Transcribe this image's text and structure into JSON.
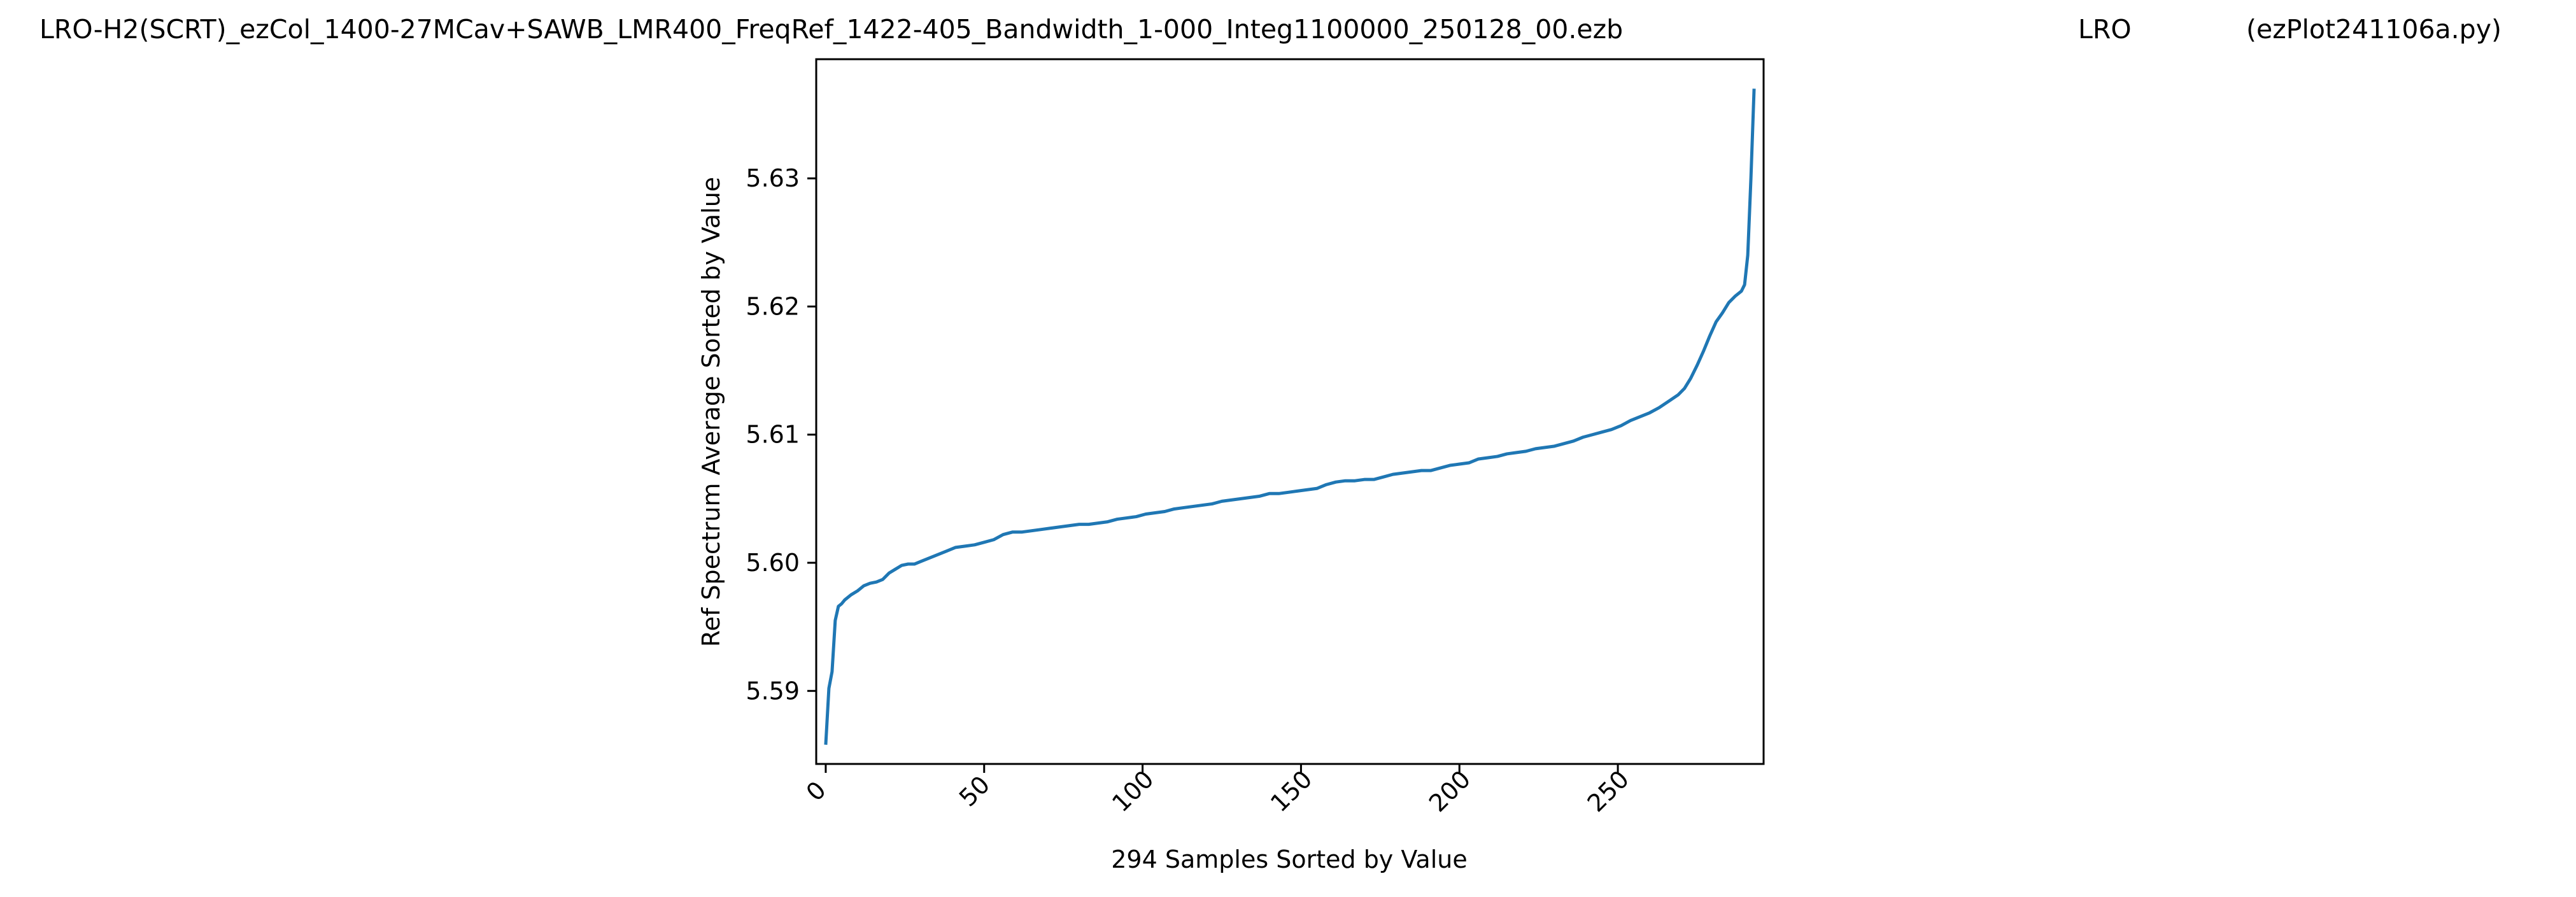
{
  "header": {
    "filename": "LRO-H2(SCRT)_ezCol_1400-27MCav+SAWB_LMR400_FreqRef_1422-405_Bandwidth_1-000_Integ1100000_250128_00.ezb",
    "station": "LRO",
    "script": "(ezPlot241106a.py)"
  },
  "chart_data": {
    "type": "line",
    "xlabel": "294 Samples Sorted by Value",
    "ylabel": "Ref Spectrum Average Sorted by Value",
    "xlim": [
      -3,
      296
    ],
    "ylim": [
      5.5843,
      5.6393
    ],
    "x_ticks": [
      0,
      50,
      100,
      150,
      200,
      250
    ],
    "x_tick_labels": [
      "0",
      "50",
      "100",
      "150",
      "200",
      "250"
    ],
    "y_ticks": [
      5.59,
      5.6,
      5.61,
      5.62,
      5.63
    ],
    "y_tick_labels": [
      "5.59",
      "5.60",
      "5.61",
      "5.62",
      "5.63"
    ],
    "grid": false,
    "line_color": "#1f77b4",
    "series": [
      {
        "x": [
          0,
          1,
          2,
          3,
          4,
          5,
          6,
          8,
          10,
          12,
          14,
          16,
          18,
          20,
          22,
          24,
          26,
          28,
          30,
          32,
          35,
          38,
          41,
          44,
          47,
          50,
          53,
          56,
          59,
          62,
          65,
          68,
          71,
          74,
          77,
          80,
          83,
          86,
          89,
          92,
          95,
          98,
          101,
          104,
          107,
          110,
          113,
          116,
          119,
          122,
          125,
          128,
          131,
          134,
          137,
          140,
          143,
          146,
          149,
          152,
          155,
          158,
          161,
          164,
          167,
          170,
          173,
          176,
          179,
          182,
          185,
          188,
          191,
          194,
          197,
          200,
          203,
          206,
          209,
          212,
          215,
          218,
          221,
          224,
          227,
          230,
          233,
          236,
          239,
          242,
          245,
          248,
          251,
          254,
          257,
          260,
          263,
          266,
          269,
          271,
          273,
          275,
          277,
          279,
          281,
          283,
          285,
          287,
          288,
          289,
          290,
          291,
          292,
          293
        ],
        "y": [
          5.5858,
          5.5902,
          5.5915,
          5.5955,
          5.5966,
          5.5968,
          5.5971,
          5.5975,
          5.5978,
          5.5982,
          5.5984,
          5.5985,
          5.5987,
          5.5992,
          5.5995,
          5.5998,
          5.5999,
          5.5999,
          5.6001,
          5.6003,
          5.6006,
          5.6009,
          5.6012,
          5.6013,
          5.6014,
          5.6016,
          5.6018,
          5.6022,
          5.6024,
          5.6024,
          5.6025,
          5.6026,
          5.6027,
          5.6028,
          5.6029,
          5.603,
          5.603,
          5.6031,
          5.6032,
          5.6034,
          5.6035,
          5.6036,
          5.6038,
          5.6039,
          5.604,
          5.6042,
          5.6043,
          5.6044,
          5.6045,
          5.6046,
          5.6048,
          5.6049,
          5.605,
          5.6051,
          5.6052,
          5.6054,
          5.6054,
          5.6055,
          5.6056,
          5.6057,
          5.6058,
          5.6061,
          5.6063,
          5.6064,
          5.6064,
          5.6065,
          5.6065,
          5.6067,
          5.6069,
          5.607,
          5.6071,
          5.6072,
          5.6072,
          5.6074,
          5.6076,
          5.6077,
          5.6078,
          5.6081,
          5.6082,
          5.6083,
          5.6085,
          5.6086,
          5.6087,
          5.6089,
          5.609,
          5.6091,
          5.6093,
          5.6095,
          5.6098,
          5.61,
          5.6102,
          5.6104,
          5.6107,
          5.6111,
          5.6114,
          5.6117,
          5.6121,
          5.6126,
          5.6131,
          5.6136,
          5.6144,
          5.6154,
          5.6165,
          5.6177,
          5.6188,
          5.6195,
          5.6203,
          5.6208,
          5.621,
          5.6212,
          5.6217,
          5.624,
          5.63,
          5.637
        ]
      }
    ]
  }
}
